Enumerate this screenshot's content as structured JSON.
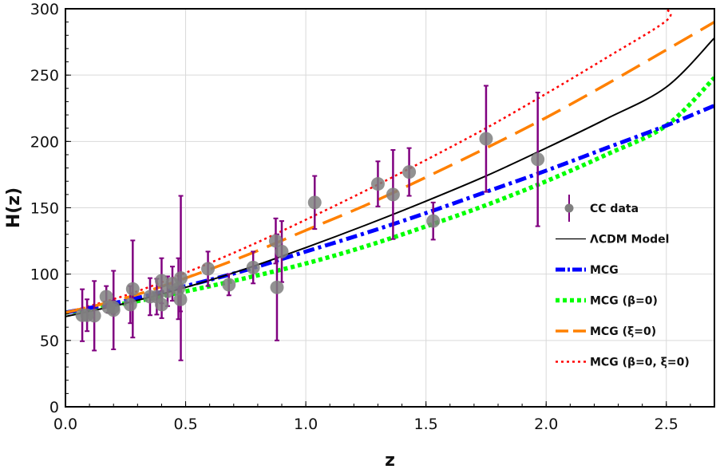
{
  "chart_data": {
    "type": "scatter",
    "xlabel": "z",
    "ylabel": "H(z)",
    "xlim": [
      0.0,
      2.7
    ],
    "ylim": [
      0,
      300
    ],
    "x_ticks": [
      "0.0",
      "0.5",
      "1.0",
      "1.5",
      "2.0",
      "2.5"
    ],
    "y_ticks": [
      "0",
      "50",
      "100",
      "150",
      "200",
      "250",
      "300"
    ],
    "grid": true,
    "legend_position": "right",
    "data_points": [
      {
        "z": 0.07,
        "H": 69,
        "err": 19.6
      },
      {
        "z": 0.09,
        "H": 69,
        "err": 12
      },
      {
        "z": 0.12,
        "H": 68.6,
        "err": 26.2
      },
      {
        "z": 0.17,
        "H": 83,
        "err": 8
      },
      {
        "z": 0.179,
        "H": 75,
        "err": 4
      },
      {
        "z": 0.199,
        "H": 75,
        "err": 5
      },
      {
        "z": 0.2,
        "H": 72.9,
        "err": 29.6
      },
      {
        "z": 0.27,
        "H": 77,
        "err": 14
      },
      {
        "z": 0.28,
        "H": 88.8,
        "err": 36.6
      },
      {
        "z": 0.352,
        "H": 83,
        "err": 14
      },
      {
        "z": 0.38,
        "H": 83,
        "err": 13.5
      },
      {
        "z": 0.4,
        "H": 95,
        "err": 17
      },
      {
        "z": 0.4004,
        "H": 77,
        "err": 10.2
      },
      {
        "z": 0.425,
        "H": 87.1,
        "err": 11.2
      },
      {
        "z": 0.445,
        "H": 92.8,
        "err": 12.9
      },
      {
        "z": 0.47,
        "H": 89,
        "err": 23
      },
      {
        "z": 0.4783,
        "H": 80.9,
        "err": 9
      },
      {
        "z": 0.48,
        "H": 97,
        "err": 62
      },
      {
        "z": 0.593,
        "H": 104,
        "err": 13
      },
      {
        "z": 0.68,
        "H": 92,
        "err": 8
      },
      {
        "z": 0.781,
        "H": 105,
        "err": 12
      },
      {
        "z": 0.875,
        "H": 125,
        "err": 17
      },
      {
        "z": 0.88,
        "H": 90,
        "err": 40
      },
      {
        "z": 0.9,
        "H": 117,
        "err": 23
      },
      {
        "z": 1.037,
        "H": 154,
        "err": 20
      },
      {
        "z": 1.3,
        "H": 168,
        "err": 17
      },
      {
        "z": 1.363,
        "H": 160,
        "err": 33.6
      },
      {
        "z": 1.43,
        "H": 177,
        "err": 18
      },
      {
        "z": 1.53,
        "H": 140,
        "err": 14
      },
      {
        "z": 1.75,
        "H": 202,
        "err": 40
      },
      {
        "z": 1.965,
        "H": 186.5,
        "err": 50.4
      }
    ],
    "series": [
      {
        "name": "CC data",
        "kind": "errorbar",
        "color": "#7f7f7f",
        "bar_color": "#800080"
      },
      {
        "name": "ΛCDM Model",
        "kind": "solid",
        "color": "#000000",
        "x": [
          0,
          0.25,
          0.5,
          0.75,
          1.0,
          1.25,
          1.5,
          1.75,
          2.0,
          2.25,
          2.5,
          2.7
        ],
        "y": [
          68,
          78,
          90,
          104,
          120,
          137,
          155,
          174,
          195,
          217,
          241,
          278
        ]
      },
      {
        "name": "MCG",
        "kind": "dash-dot",
        "color": "#0000ff",
        "x": [
          0,
          0.25,
          0.5,
          0.75,
          1.0,
          1.25,
          1.5,
          1.75,
          2.0,
          2.25,
          2.5,
          2.7
        ],
        "y": [
          71,
          80,
          91,
          103,
          117,
          131,
          146,
          162,
          178,
          195,
          212,
          227
        ]
      },
      {
        "name": "MCG (β=0)",
        "kind": "dotted-thick",
        "color": "#00ff00",
        "x": [
          0,
          0.25,
          0.5,
          0.75,
          1.0,
          1.25,
          1.5,
          1.75,
          2.0,
          2.25,
          2.5,
          2.7
        ],
        "y": [
          71,
          78,
          87,
          97,
          108,
          121,
          136,
          152,
          170,
          190,
          212,
          248
        ]
      },
      {
        "name": "MCG (ξ=0)",
        "kind": "long-dash",
        "color": "#ff8000",
        "x": [
          0,
          0.25,
          0.5,
          0.75,
          1.0,
          1.25,
          1.5,
          1.75,
          2.0,
          2.25,
          2.5,
          2.7
        ],
        "y": [
          71,
          82,
          97,
          114,
          133,
          152,
          173,
          195,
          218,
          243,
          269,
          290
        ]
      },
      {
        "name": "MCG (β=0, ξ=0)",
        "kind": "dotted",
        "color": "#ff0000",
        "x": [
          0,
          0.25,
          0.5,
          0.75,
          1.0,
          1.25,
          1.5,
          1.75,
          2.0,
          2.25,
          2.5,
          2.5
        ],
        "y": [
          71,
          84,
          101,
          120,
          141,
          163,
          186,
          210,
          236,
          263,
          291,
          300
        ]
      }
    ],
    "legend": [
      "CC data",
      "ΛCDM Model",
      "MCG",
      "MCG (β=0)",
      "MCG (ξ=0)",
      "MCG (β=0, ξ=0)"
    ]
  }
}
